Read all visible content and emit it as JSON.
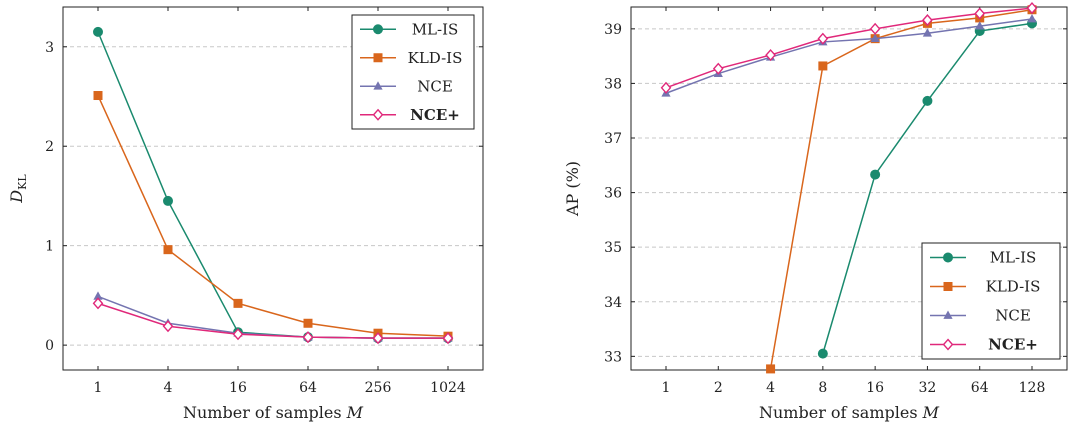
{
  "chart_data": [
    {
      "type": "line",
      "xlabel_prefix": "Number of samples ",
      "xlabel_var": "M",
      "ylabel_main": "D",
      "ylabel_sub": "KL",
      "x_scale": "log2",
      "x": [
        1,
        4,
        16,
        64,
        256,
        1024
      ],
      "x_tick_labels": [
        "1",
        "4",
        "16",
        "64",
        "256",
        "1024"
      ],
      "ylim": [
        -0.25,
        3.4
      ],
      "y_ticks": [
        0,
        1,
        2,
        3
      ],
      "y_tick_labels": [
        "0",
        "1",
        "2",
        "3"
      ],
      "grid": true,
      "legend_position": "top-right",
      "series": [
        {
          "name": "ML-IS",
          "marker": "circle",
          "color": "#1a8a6e",
          "x": [
            1,
            4,
            16,
            64,
            256,
            1024
          ],
          "values": [
            3.15,
            1.45,
            0.13,
            0.08,
            0.07,
            0.07
          ]
        },
        {
          "name": "KLD-IS",
          "marker": "square",
          "color": "#d9661c",
          "x": [
            1,
            4,
            16,
            64,
            256,
            1024
          ],
          "values": [
            2.51,
            0.96,
            0.42,
            0.22,
            0.12,
            0.09
          ]
        },
        {
          "name": "NCE",
          "marker": "triangle",
          "color": "#7474b0",
          "x": [
            1,
            4,
            16,
            64,
            256,
            1024
          ],
          "values": [
            0.49,
            0.22,
            0.12,
            0.08,
            0.07,
            0.07
          ]
        },
        {
          "name": "NCE+",
          "marker": "diamond",
          "color": "#e0287a",
          "bold": true,
          "x": [
            1,
            4,
            16,
            64,
            256,
            1024
          ],
          "values": [
            0.42,
            0.19,
            0.11,
            0.08,
            0.07,
            0.07
          ]
        }
      ]
    },
    {
      "type": "line",
      "xlabel_prefix": "Number of samples ",
      "xlabel_var": "M",
      "ylabel": "AP (%)",
      "x_scale": "log2",
      "x": [
        1,
        2,
        4,
        8,
        16,
        32,
        64,
        128
      ],
      "x_tick_labels": [
        "1",
        "2",
        "4",
        "8",
        "16",
        "32",
        "64",
        "128"
      ],
      "ylim": [
        32.75,
        39.4
      ],
      "y_ticks": [
        33,
        34,
        35,
        36,
        37,
        38,
        39
      ],
      "y_tick_labels": [
        "33",
        "34",
        "35",
        "36",
        "37",
        "38",
        "39"
      ],
      "grid": true,
      "legend_position": "bottom-right",
      "series": [
        {
          "name": "ML-IS",
          "marker": "circle",
          "color": "#1a8a6e",
          "x": [
            8,
            16,
            32,
            64,
            128
          ],
          "values": [
            33.05,
            36.33,
            37.68,
            38.96,
            39.1
          ]
        },
        {
          "name": "KLD-IS",
          "marker": "square",
          "color": "#d9661c",
          "x": [
            4,
            8,
            16,
            32,
            64,
            128
          ],
          "values": [
            32.77,
            38.32,
            38.82,
            39.1,
            39.2,
            39.35
          ]
        },
        {
          "name": "NCE",
          "marker": "triangle",
          "color": "#7474b0",
          "x": [
            1,
            2,
            4,
            8,
            16,
            32,
            64,
            128
          ],
          "values": [
            37.82,
            38.18,
            38.48,
            38.76,
            38.82,
            38.92,
            39.05,
            39.18
          ]
        },
        {
          "name": "NCE+",
          "marker": "diamond",
          "color": "#e0287a",
          "bold": true,
          "x": [
            1,
            2,
            4,
            8,
            16,
            32,
            64,
            128
          ],
          "values": [
            37.92,
            38.27,
            38.52,
            38.82,
            39.0,
            39.16,
            39.28,
            39.38
          ]
        }
      ]
    }
  ]
}
